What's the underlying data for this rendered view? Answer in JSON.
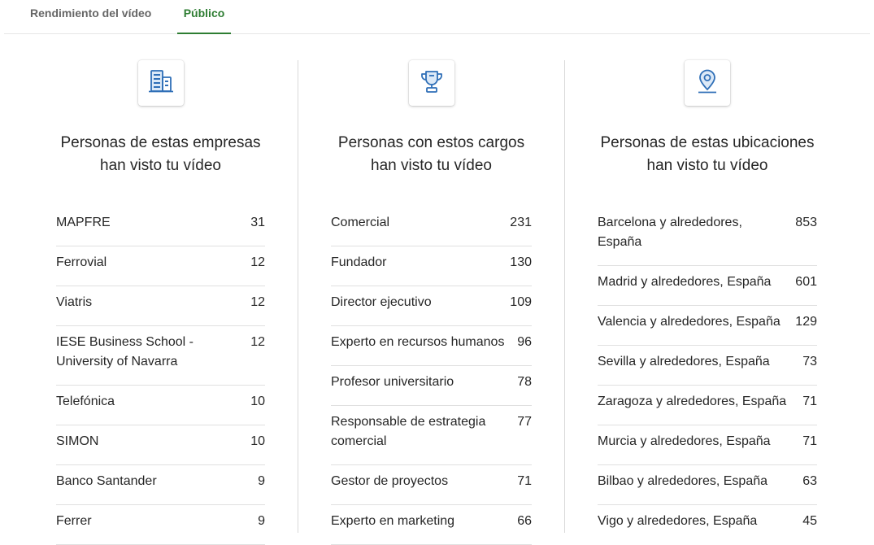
{
  "tabs": [
    {
      "label": "Rendimiento del vídeo",
      "active": false
    },
    {
      "label": "Público",
      "active": true
    }
  ],
  "accent_color": "#2e7d32",
  "icon_color": "#2f6fb7",
  "columns": [
    {
      "icon": "building-icon",
      "heading_line1": "Personas de estas empresas",
      "heading_line2": "han visto tu vídeo",
      "rows": [
        {
          "label": "MAPFRE",
          "value": "31"
        },
        {
          "label": "Ferrovial",
          "value": "12"
        },
        {
          "label": "Viatris",
          "value": "12"
        },
        {
          "label": "IESE Business School - University of Navarra",
          "value": "12"
        },
        {
          "label": "Telefónica",
          "value": "10"
        },
        {
          "label": "SIMON",
          "value": "10"
        },
        {
          "label": "Banco Santander",
          "value": "9"
        },
        {
          "label": "Ferrer",
          "value": "9"
        }
      ]
    },
    {
      "icon": "trophy-icon",
      "heading_line1": "Personas con estos cargos",
      "heading_line2": "han visto tu vídeo",
      "rows": [
        {
          "label": "Comercial",
          "value": "231"
        },
        {
          "label": "Fundador",
          "value": "130"
        },
        {
          "label": "Director ejecutivo",
          "value": "109"
        },
        {
          "label": "Experto en recursos humanos",
          "value": "96"
        },
        {
          "label": "Profesor universitario",
          "value": "78"
        },
        {
          "label": "Responsable de estrategia comercial",
          "value": "77"
        },
        {
          "label": "Gestor de proyectos",
          "value": "71"
        },
        {
          "label": "Experto en marketing",
          "value": "66"
        }
      ]
    },
    {
      "icon": "location-pin-icon",
      "heading_line1": "Personas de estas ubicaciones",
      "heading_line2": "han visto tu vídeo",
      "rows": [
        {
          "label": "Barcelona y alrededores, España",
          "value": "853"
        },
        {
          "label": "Madrid y alrededores, España",
          "value": "601"
        },
        {
          "label": "Valencia y alrededores, España",
          "value": "129"
        },
        {
          "label": "Sevilla y alrededores, España",
          "value": "73"
        },
        {
          "label": "Zaragoza y alrededores, España",
          "value": "71"
        },
        {
          "label": "Murcia y alrededores, España",
          "value": "71"
        },
        {
          "label": "Bilbao y alrededores, España",
          "value": "63"
        },
        {
          "label": "Vigo y alrededores, España",
          "value": "45"
        }
      ]
    }
  ]
}
